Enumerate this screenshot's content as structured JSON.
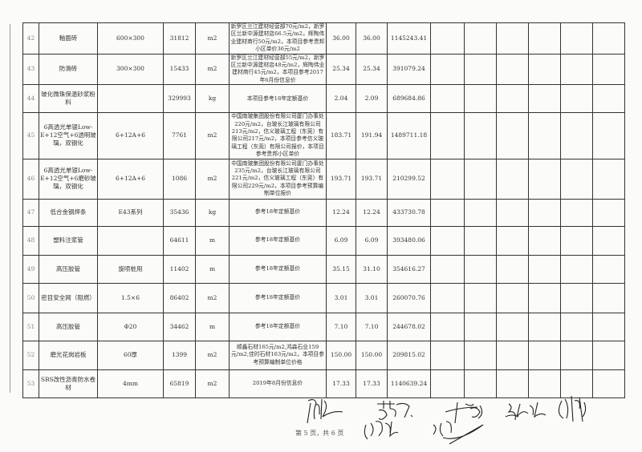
{
  "rows": [
    {
      "no": "42",
      "name": "釉面砖",
      "spec": "600×300",
      "qty": "31812",
      "unit": "m2",
      "note": "新罗区兰江建材经营部70元/m2，新罗区兰新中源建材店66.5元/m2，辉陶伟业建材商行50元/m2，本项目参考贵邦小区单价36元/m2",
      "price1": "36.00",
      "price2": "36.00",
      "total": "1145243.41"
    },
    {
      "no": "43",
      "name": "防滑砖",
      "spec": "300×300",
      "qty": "15433",
      "unit": "m2",
      "note": "新罗区兰江建材经营部55元/m2，新罗区兰新中源建材店48元/m2，辉陶伟业建材商行45元/m2，本项目参考2017年6月份信息价",
      "price1": "25.34",
      "price2": "25.34",
      "total": "391079.24"
    },
    {
      "no": "44",
      "name": "玻化微珠保温砂浆粉料",
      "spec": "",
      "qty": "329993",
      "unit": "kg",
      "note": "本项目参考18年定额基价",
      "price1": "2.04",
      "price2": "2.09",
      "total": "689684.86"
    },
    {
      "no": "45",
      "name": "6高透光单银Low-E+12空气+6透明玻璃，双钢化",
      "spec": "6+12A+6",
      "qty": "7761",
      "unit": "m2",
      "note": "中国南玻集团股份有限公司厦门办事处220元/m2，台玻长江玻璃有限公司213元/m2，信义玻璃工程（东莞）有限公司217元/m2，本项目参考信义玻璃工程（东莞）有限公司报价，本项目参考贵邦小区单价",
      "price1": "183.71",
      "price2": "191.94",
      "total": "1489711.18"
    },
    {
      "no": "46",
      "name": "6高透光单银Low-E+12空气+6磨砂玻璃，双钢化",
      "spec": "6+12A+6",
      "qty": "1086",
      "unit": "m2",
      "note": "中国南玻集团股份有限公司厦门办事处235元/m2，台玻长江玻璃有限公司221元/m2，信义玻璃工程（东莞）有限公司229元/m2，本项目参考预算编制单位报价",
      "price1": "193.71",
      "price2": "193.71",
      "total": "210299.52"
    },
    {
      "no": "47",
      "name": "低合金钢焊条",
      "spec": "E43系列",
      "qty": "35436",
      "unit": "kg",
      "note": "参考18年定额基价",
      "price1": "12.24",
      "price2": "12.24",
      "total": "433730.78"
    },
    {
      "no": "48",
      "name": "塑料注浆管",
      "spec": "",
      "qty": "64611",
      "unit": "m",
      "note": "参考18年定额基价",
      "price1": "6.09",
      "price2": "6.09",
      "total": "393480.06"
    },
    {
      "no": "49",
      "name": "高压胶管",
      "spec": "旋喷桩用",
      "qty": "11402",
      "unit": "m",
      "note": "参考18年定额基价",
      "price1": "35.15",
      "price2": "31.10",
      "total": "354616.27"
    },
    {
      "no": "50",
      "name": "密目安全网（阻燃）",
      "spec": "1.5×6",
      "qty": "86402",
      "unit": "m2",
      "note": "参考18年定额基价",
      "price1": "3.01",
      "price2": "3.01",
      "total": "260070.76"
    },
    {
      "no": "51",
      "name": "高压胶管",
      "spec": "Φ20",
      "qty": "34462",
      "unit": "m",
      "note": "参考18年定额基价",
      "price1": "7.10",
      "price2": "7.10",
      "total": "244678.02"
    },
    {
      "no": "52",
      "name": "磨光花岗岩板",
      "spec": "60厚",
      "qty": "1399",
      "unit": "m2",
      "note": "顺鑫石材165元/m2,鸿森石业159元/m2,佳时石材163元/m2，本项目参考预算编制单位价格",
      "price1": "150.00",
      "price2": "150.00",
      "total": "209815.02"
    },
    {
      "no": "53",
      "name": "SBS改性沥青防水卷材",
      "spec": "4mm",
      "qty": "65819",
      "unit": "m2",
      "note": "2019年8月份信息价",
      "price1": "17.33",
      "price2": "17.33",
      "total": "1140639.24"
    }
  ],
  "footer": {
    "page": "第 5 页，共 6 页"
  },
  "signatures": [
    "李刚仁",
    "葛红英",
    "朱守亮",
    "吴晓红",
    "郭福平",
    "陈福功",
    "江忠"
  ]
}
